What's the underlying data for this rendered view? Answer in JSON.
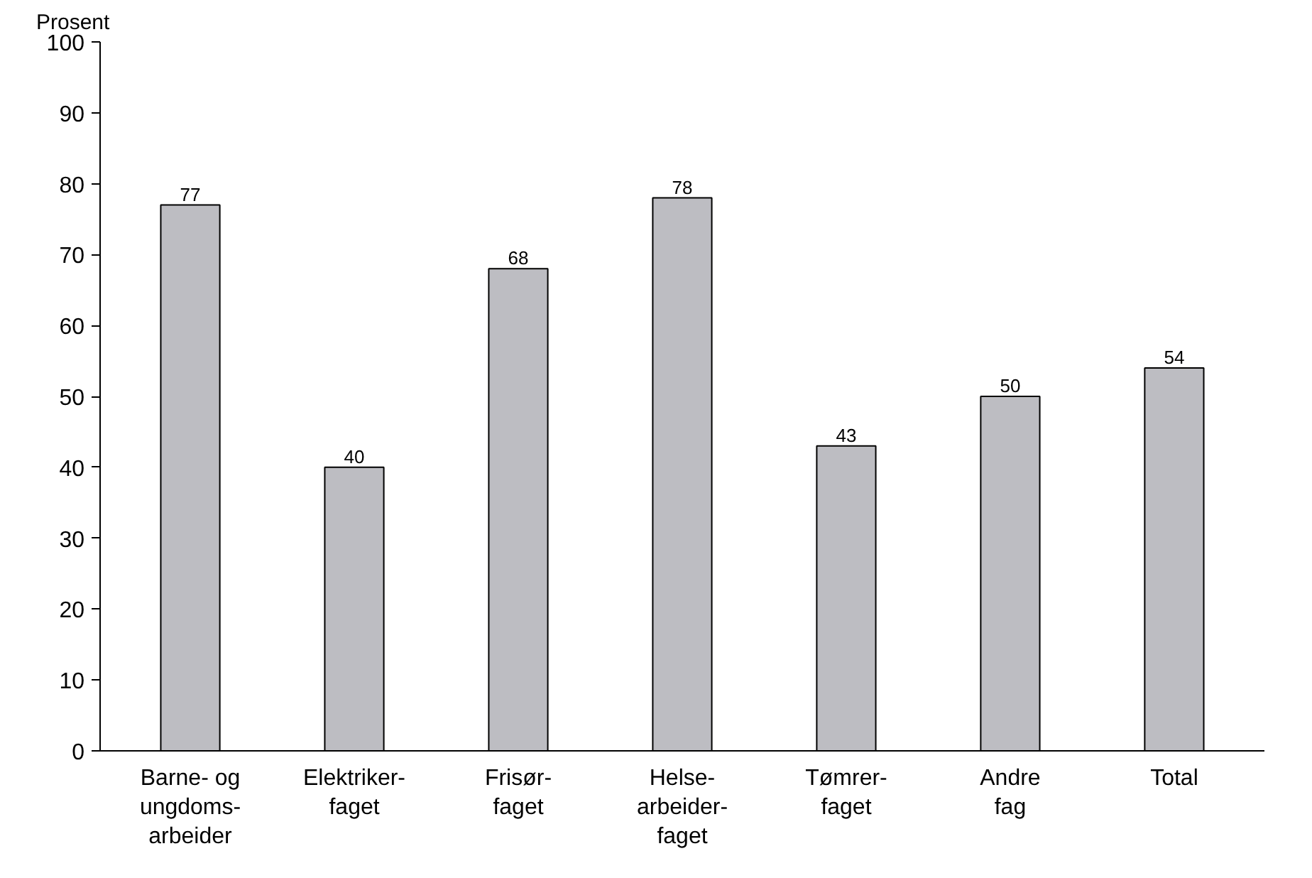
{
  "chart_data": {
    "type": "bar",
    "ylabel": "Prosent",
    "categories": [
      "Barne- og\nungdoms-\narbeider",
      "Elektriker-\nfaget",
      "Frisør-\nfaget",
      "Helse-\narbeider-\nfaget",
      "Tømrer-\nfaget",
      "Andre\nfag",
      "Total"
    ],
    "values": [
      77,
      40,
      68,
      78,
      43,
      50,
      54
    ],
    "color": "#bdbdc2",
    "ylim": [
      0,
      100
    ],
    "yticks": [
      0,
      10,
      20,
      30,
      40,
      50,
      60,
      70,
      80,
      90,
      100
    ],
    "data_labels": true,
    "grid": false
  }
}
